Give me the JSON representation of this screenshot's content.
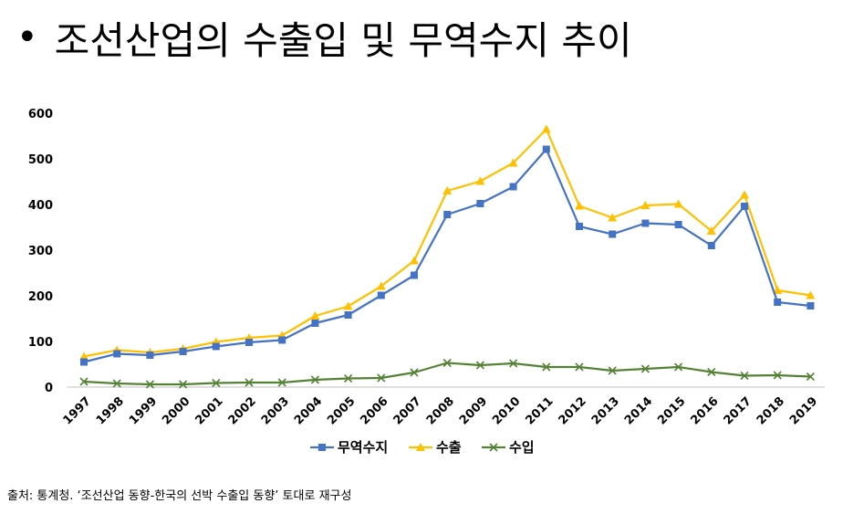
{
  "title": {
    "bullet": "•",
    "text": "조선산업의 수출입 및 무역수지 추이"
  },
  "source": "출처: 통계청. ‘조선산업 동향-한국의 선박 수출입 동향’ 토대로 재구성",
  "chart_data": {
    "type": "line",
    "title": "",
    "xlabel": "",
    "ylabel": "",
    "ylim": [
      0,
      600
    ],
    "yticks": [
      "0",
      "100",
      "200",
      "300",
      "400",
      "500",
      "600"
    ],
    "grid": false,
    "legend": "bottom",
    "categories": [
      "1997",
      "1998",
      "1999",
      "2000",
      "2001",
      "2002",
      "2003",
      "2004",
      "2005",
      "2006",
      "2007",
      "2008",
      "2009",
      "2010",
      "2011",
      "2012",
      "2013",
      "2014",
      "2015",
      "2016",
      "2017",
      "2018",
      "2019"
    ],
    "series": [
      {
        "name": "무역수지",
        "color": "#4472C4",
        "marker": "square",
        "values": [
          55,
          73,
          70,
          78,
          89,
          98,
          103,
          140,
          158,
          201,
          245,
          378,
          402,
          439,
          521,
          352,
          335,
          359,
          356,
          310,
          396,
          186,
          178
        ]
      },
      {
        "name": "수출",
        "color": "#FFC000",
        "marker": "triangle",
        "values": [
          67,
          81,
          76,
          84,
          99,
          108,
          113,
          156,
          177,
          221,
          277,
          430,
          451,
          491,
          565,
          397,
          371,
          398,
          401,
          342,
          421,
          212,
          201
        ]
      },
      {
        "name": "수입",
        "color": "#548235",
        "marker": "x",
        "values": [
          12,
          8,
          6,
          6,
          9,
          10,
          10,
          16,
          19,
          20,
          32,
          53,
          48,
          52,
          44,
          44,
          36,
          40,
          44,
          33,
          25,
          26,
          23
        ]
      }
    ]
  }
}
